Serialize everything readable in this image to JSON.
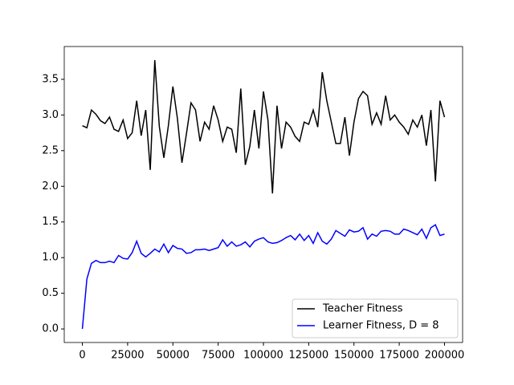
{
  "chart_data": {
    "type": "line",
    "x": [
      0,
      2500,
      5000,
      7500,
      10000,
      12500,
      15000,
      17500,
      20000,
      22500,
      25000,
      27500,
      30000,
      32500,
      35000,
      37500,
      40000,
      42500,
      45000,
      47500,
      50000,
      52500,
      55000,
      57500,
      60000,
      62500,
      65000,
      67500,
      70000,
      72500,
      75000,
      77500,
      80000,
      82500,
      85000,
      87500,
      90000,
      92500,
      95000,
      97500,
      100000,
      102500,
      105000,
      107500,
      110000,
      112500,
      115000,
      117500,
      120000,
      122500,
      125000,
      127500,
      130000,
      132500,
      135000,
      137500,
      140000,
      142500,
      145000,
      147500,
      150000,
      152500,
      155000,
      157500,
      160000,
      162500,
      165000,
      167500,
      170000,
      172500,
      175000,
      177500,
      180000,
      182500,
      185000,
      187500,
      190000,
      192500,
      195000,
      197500,
      200000
    ],
    "series": [
      {
        "name": "Teacher Fitness",
        "color": "#000000",
        "values": [
          2.85,
          2.82,
          3.07,
          3.01,
          2.92,
          2.88,
          2.97,
          2.8,
          2.77,
          2.93,
          2.67,
          2.75,
          3.2,
          2.71,
          3.07,
          2.23,
          3.77,
          2.84,
          2.4,
          2.85,
          3.4,
          2.95,
          2.33,
          2.74,
          3.17,
          3.07,
          2.63,
          2.9,
          2.8,
          3.13,
          2.93,
          2.63,
          2.83,
          2.8,
          2.47,
          3.37,
          2.3,
          2.56,
          3.07,
          2.53,
          3.33,
          2.93,
          1.9,
          3.13,
          2.53,
          2.9,
          2.83,
          2.7,
          2.63,
          2.9,
          2.87,
          3.07,
          2.83,
          3.6,
          3.2,
          2.9,
          2.6,
          2.6,
          2.97,
          2.43,
          2.9,
          3.23,
          3.33,
          3.27,
          2.87,
          3.03,
          2.87,
          3.27,
          2.93,
          3.0,
          2.9,
          2.83,
          2.73,
          2.93,
          2.83,
          3.0,
          2.57,
          3.07,
          2.07,
          3.2,
          2.97
        ]
      },
      {
        "name": "Learner Fitness, D = 8",
        "color": "#0000ff",
        "values": [
          0,
          0.7,
          0.92,
          0.96,
          0.93,
          0.93,
          0.95,
          0.93,
          1.03,
          0.99,
          0.98,
          1.07,
          1.23,
          1.06,
          1.01,
          1.06,
          1.12,
          1.08,
          1.19,
          1.07,
          1.17,
          1.13,
          1.12,
          1.06,
          1.07,
          1.11,
          1.11,
          1.12,
          1.1,
          1.12,
          1.14,
          1.25,
          1.16,
          1.22,
          1.16,
          1.18,
          1.22,
          1.15,
          1.23,
          1.26,
          1.28,
          1.22,
          1.2,
          1.21,
          1.24,
          1.28,
          1.31,
          1.25,
          1.33,
          1.24,
          1.31,
          1.2,
          1.35,
          1.23,
          1.19,
          1.26,
          1.38,
          1.34,
          1.3,
          1.39,
          1.36,
          1.37,
          1.42,
          1.26,
          1.33,
          1.3,
          1.37,
          1.38,
          1.37,
          1.33,
          1.33,
          1.4,
          1.38,
          1.35,
          1.32,
          1.4,
          1.27,
          1.42,
          1.46,
          1.31,
          1.33
        ]
      }
    ],
    "xlim": [
      -10000,
      210000
    ],
    "xticks": [
      0,
      25000,
      50000,
      75000,
      100000,
      125000,
      150000,
      175000,
      200000
    ],
    "ylim": [
      -0.19,
      3.96
    ],
    "yticks": [
      {
        "value": 0,
        "label": "0.0"
      },
      0.5,
      {
        "value": 1,
        "label": "1.0"
      },
      1.5,
      {
        "value": 2,
        "label": "2.0"
      },
      2.5,
      {
        "value": 3,
        "label": "3.0"
      },
      3.5
    ],
    "legend": "lower right"
  }
}
